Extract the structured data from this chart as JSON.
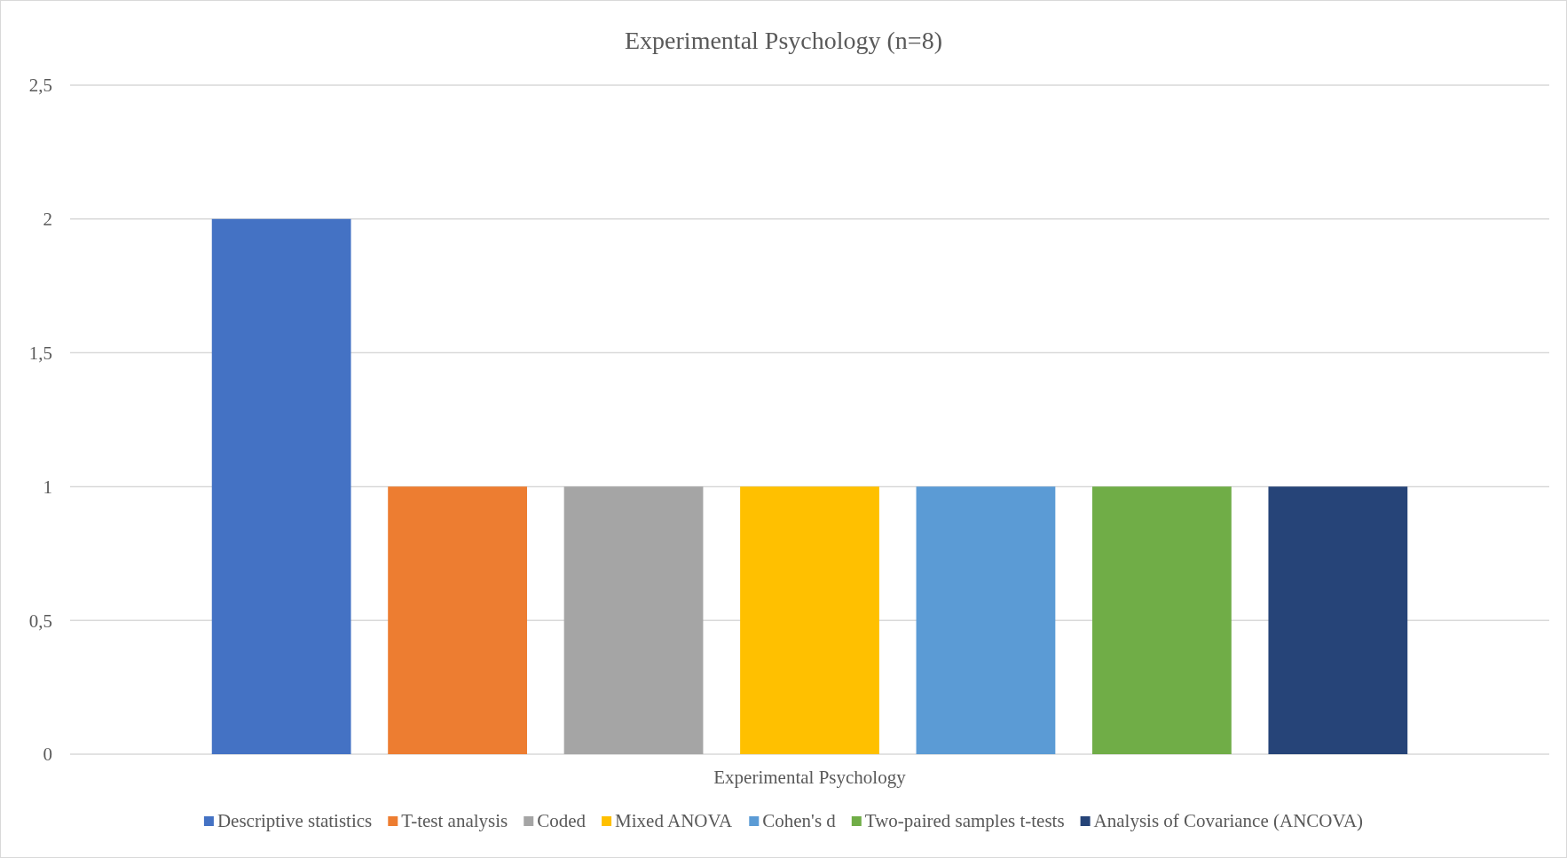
{
  "chart_data": {
    "type": "bar",
    "title": "Experimental Psychology (n=8)",
    "categories": [
      "Experimental Psychology"
    ],
    "series": [
      {
        "name": "Descriptive statistics",
        "color": "#4472c4",
        "values": [
          2
        ]
      },
      {
        "name": "T-test analysis",
        "color": "#ed7d31",
        "values": [
          1
        ]
      },
      {
        "name": "Coded",
        "color": "#a5a5a5",
        "values": [
          1
        ]
      },
      {
        "name": "Mixed ANOVA",
        "color": "#ffc000",
        "values": [
          1
        ]
      },
      {
        "name": "Cohen's d",
        "color": "#5b9bd5",
        "values": [
          1
        ]
      },
      {
        "name": "Two-paired samples t-tests",
        "color": "#70ad47",
        "values": [
          1
        ]
      },
      {
        "name": "Analysis of Covariance (ANCOVA)",
        "color": "#264478",
        "values": [
          1
        ]
      }
    ],
    "ylim": [
      0,
      2.5
    ],
    "yticks": [
      0,
      {
        "value": 0.5,
        "label": "0,5"
      },
      1,
      {
        "value": 1.5,
        "label": "1,5"
      },
      2,
      {
        "value": 2.5,
        "label": "2,5"
      }
    ],
    "grid": "y",
    "legend": "bottom"
  }
}
